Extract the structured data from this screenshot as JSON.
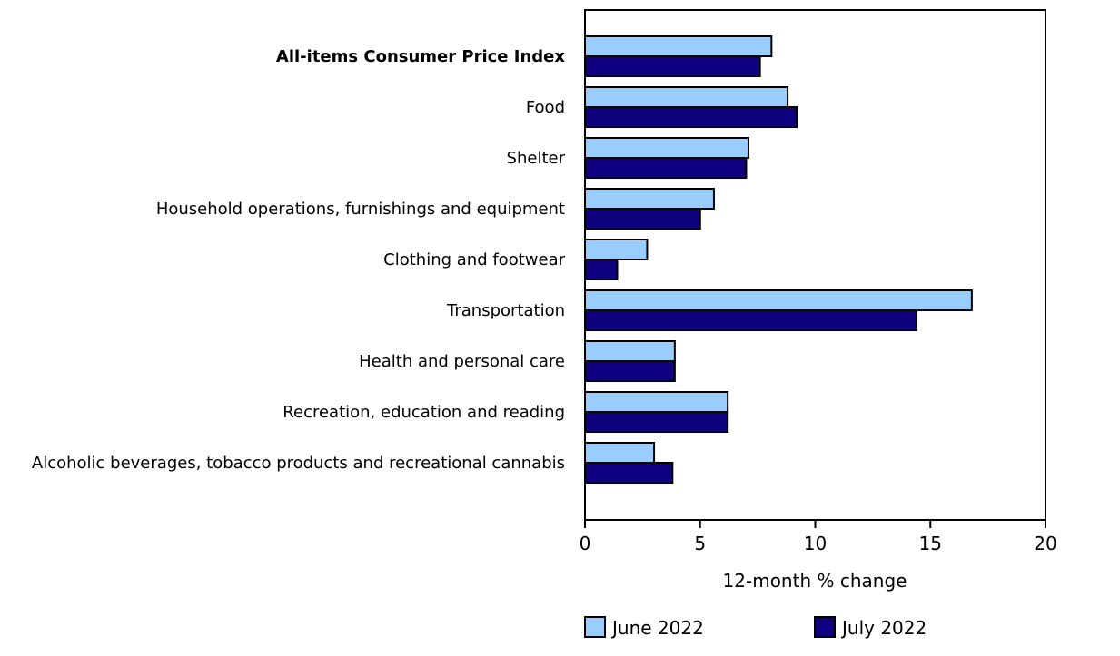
{
  "chart_data": {
    "type": "bar",
    "orientation": "horizontal",
    "categories": [
      "All-items Consumer Price Index",
      "Food",
      "Shelter",
      "Household operations, furnishings and equipment",
      "Clothing and footwear",
      "Transportation",
      "Health and personal care",
      "Recreation, education and reading",
      "Alcoholic beverages, tobacco products and recreational cannabis"
    ],
    "series": [
      {
        "name": "June 2022",
        "color": "#99ccff",
        "values": [
          8.1,
          8.8,
          7.1,
          5.6,
          2.7,
          16.8,
          3.9,
          6.2,
          3.0
        ]
      },
      {
        "name": "July 2022",
        "color": "#0f0080",
        "values": [
          7.6,
          9.2,
          7.0,
          5.0,
          1.4,
          14.4,
          3.9,
          6.2,
          3.8
        ]
      }
    ],
    "xlabel": "12-month % change",
    "ylabel": "",
    "xlim": [
      0,
      20
    ],
    "xticks": [
      "0",
      "5",
      "10",
      "15",
      "20"
    ],
    "grid": false,
    "legend_position": "bottom"
  }
}
